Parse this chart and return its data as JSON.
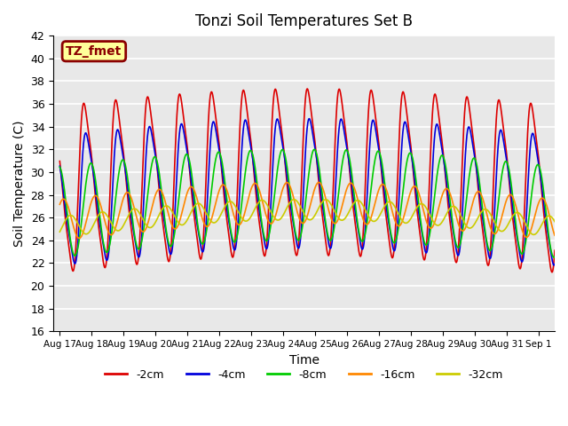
{
  "title": "Tonzi Soil Temperatures Set B",
  "xlabel": "Time",
  "ylabel": "Soil Temperature (C)",
  "ylim": [
    16,
    42
  ],
  "x_tick_labels": [
    "Aug 17",
    "Aug 18",
    "Aug 19",
    "Aug 20",
    "Aug 21",
    "Aug 22",
    "Aug 23",
    "Aug 24",
    "Aug 25",
    "Aug 26",
    "Aug 27",
    "Aug 28",
    "Aug 29",
    "Aug 30",
    "Aug 31",
    "Sep 1"
  ],
  "annotation_text": "TZ_fmet",
  "annotation_bg": "#ffff99",
  "annotation_border": "#8B0000",
  "background_color": "#e8e8e8",
  "lines": [
    {
      "label": "-2cm",
      "color": "#dd0000",
      "amplitude": 9.0,
      "mean": 28.5,
      "lag_days": 0.0,
      "sharpness": 2.5
    },
    {
      "label": "-4cm",
      "color": "#0000dd",
      "amplitude": 7.0,
      "mean": 27.5,
      "lag_days": 0.06,
      "sharpness": 2.0
    },
    {
      "label": "-8cm",
      "color": "#00cc00",
      "amplitude": 4.0,
      "mean": 26.5,
      "lag_days": 0.14,
      "sharpness": 1.2
    },
    {
      "label": "-16cm",
      "color": "#ff8800",
      "amplitude": 1.8,
      "mean": 25.8,
      "lag_days": 0.28,
      "sharpness": 1.0
    },
    {
      "label": "-32cm",
      "color": "#cccc00",
      "amplitude": 0.9,
      "mean": 25.2,
      "lag_days": 0.5,
      "sharpness": 1.0
    }
  ],
  "legend_colors": [
    "#dd0000",
    "#0000dd",
    "#00cc00",
    "#ff8800",
    "#cccc00"
  ],
  "legend_labels": [
    "-2cm",
    "-4cm",
    "-8cm",
    "-16cm",
    "-32cm"
  ],
  "peak_hour": 14.0,
  "n_days": 15.5,
  "mean_trend_amplitude": 1.5,
  "mean_trend_peak_day": 11.0
}
